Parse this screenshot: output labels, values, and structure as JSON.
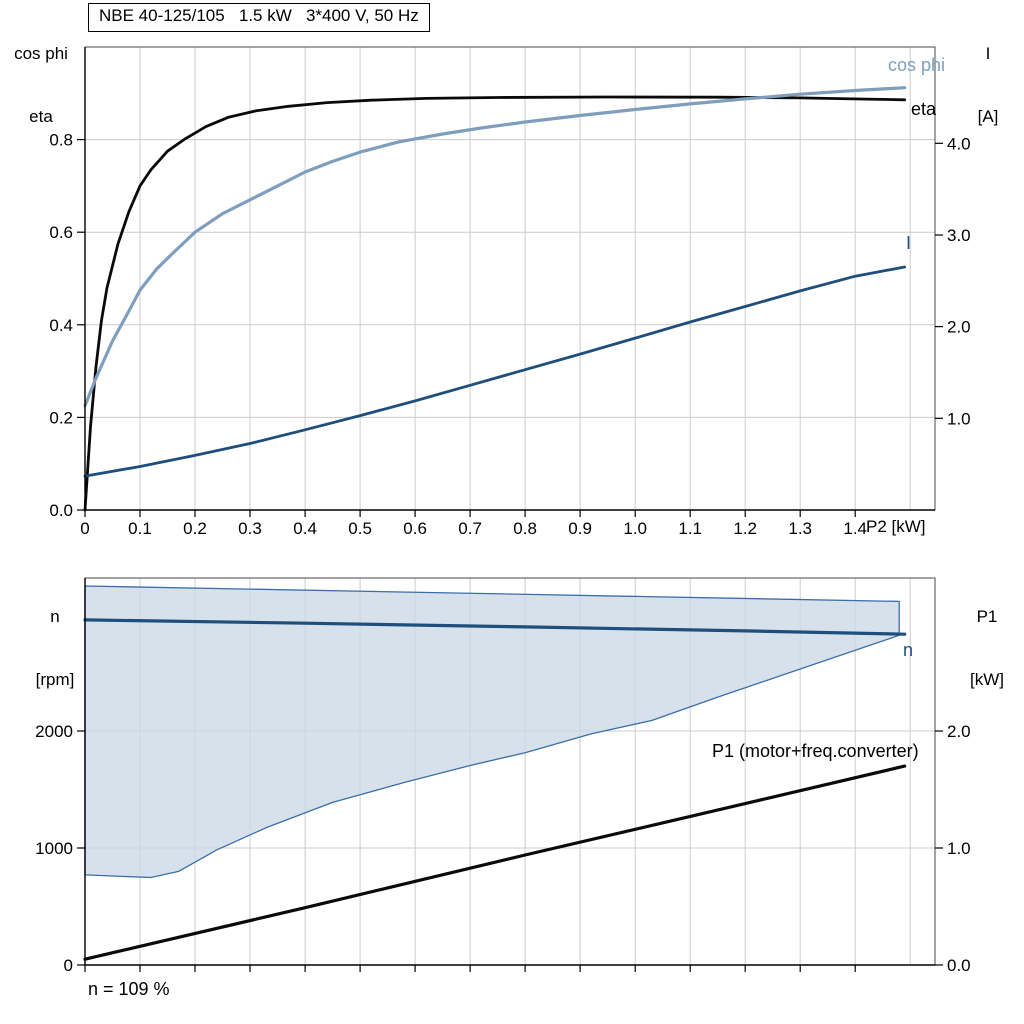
{
  "title_box": {
    "text": "NBE 40-125/105   1.5 kW   3*400 V, 50 Hz"
  },
  "colors": {
    "black_curve": "#0a0a0a",
    "steelblue": "#7f9dbd",
    "darkblue": "#1d4e7c",
    "grid": "#cccccc",
    "frame": "#4a4a4a",
    "region_fill": "#ccd9e7",
    "region_edge": "#3b6ea8",
    "background": "#ffffff"
  },
  "chart_data": [
    {
      "type": "line",
      "title": "NBE 40-125/105   1.5 kW   3*400 V, 50 Hz",
      "xlabel": "P2 [kW]",
      "ylabel_left": [
        "cos phi",
        "eta"
      ],
      "ylabel_right": [
        "I",
        "[A]"
      ],
      "xlim": [
        0,
        1.545
      ],
      "xticks": [
        0,
        0.1,
        0.2,
        0.3,
        0.4,
        0.5,
        0.6,
        0.7,
        0.8,
        0.9,
        1.0,
        1.1,
        1.2,
        1.3,
        1.4
      ],
      "xtick_labels": [
        "0",
        "0.1",
        "0.2",
        "0.3",
        "0.4",
        "0.5",
        "0.6",
        "0.7",
        "0.8",
        "0.9",
        "1.0",
        "1.1",
        "1.2",
        "1.3",
        "1.4"
      ],
      "xgrid": [
        0.1,
        0.2,
        0.3,
        0.4,
        0.5,
        0.6,
        0.7,
        0.8,
        0.9,
        1.0,
        1.1,
        1.2,
        1.3,
        1.4,
        1.5
      ],
      "ygrid": [
        0.2,
        0.4,
        0.6,
        0.8
      ],
      "left": {
        "lim": [
          0,
          1.0
        ],
        "ticks": [
          0,
          0.2,
          0.4,
          0.6,
          0.8
        ],
        "labels": [
          "0.0",
          "0.2",
          "0.4",
          "0.6",
          "0.8"
        ]
      },
      "right": {
        "lim": [
          0,
          5.05
        ],
        "ticks": [
          1,
          2,
          3,
          4
        ],
        "labels": [
          "1.0",
          "2.0",
          "3.0",
          "4.0"
        ]
      },
      "grid": true,
      "legend_position": "curve-end-labels",
      "series": [
        {
          "name": "eta",
          "axis": "left",
          "color": "black_curve",
          "width": 2.8,
          "points": [
            [
              0,
              0.0
            ],
            [
              0.01,
              0.18
            ],
            [
              0.02,
              0.31
            ],
            [
              0.03,
              0.41
            ],
            [
              0.04,
              0.48
            ],
            [
              0.06,
              0.575
            ],
            [
              0.08,
              0.645
            ],
            [
              0.1,
              0.7
            ],
            [
              0.12,
              0.735
            ],
            [
              0.15,
              0.775
            ],
            [
              0.18,
              0.8
            ],
            [
              0.22,
              0.828
            ],
            [
              0.26,
              0.848
            ],
            [
              0.31,
              0.862
            ],
            [
              0.37,
              0.872
            ],
            [
              0.44,
              0.88
            ],
            [
              0.52,
              0.885
            ],
            [
              0.62,
              0.889
            ],
            [
              0.75,
              0.891
            ],
            [
              0.95,
              0.892
            ],
            [
              1.15,
              0.8915
            ],
            [
              1.3,
              0.89
            ],
            [
              1.42,
              0.8875
            ],
            [
              1.49,
              0.886
            ]
          ]
        },
        {
          "name": "cos phi",
          "axis": "left",
          "color": "steelblue",
          "width": 3.2,
          "points": [
            [
              0,
              0.225
            ],
            [
              0.02,
              0.285
            ],
            [
              0.05,
              0.365
            ],
            [
              0.08,
              0.43
            ],
            [
              0.1,
              0.475
            ],
            [
              0.13,
              0.52
            ],
            [
              0.16,
              0.555
            ],
            [
              0.2,
              0.6
            ],
            [
              0.25,
              0.64
            ],
            [
              0.3,
              0.67
            ],
            [
              0.35,
              0.7
            ],
            [
              0.4,
              0.73
            ],
            [
              0.45,
              0.753
            ],
            [
              0.5,
              0.773
            ],
            [
              0.57,
              0.795
            ],
            [
              0.65,
              0.812
            ],
            [
              0.72,
              0.825
            ],
            [
              0.8,
              0.838
            ],
            [
              0.9,
              0.852
            ],
            [
              1.0,
              0.865
            ],
            [
              1.1,
              0.877
            ],
            [
              1.2,
              0.888
            ],
            [
              1.3,
              0.898
            ],
            [
              1.4,
              0.906
            ],
            [
              1.49,
              0.912
            ]
          ]
        },
        {
          "name": "I",
          "axis": "right",
          "color": "darkblue",
          "width": 2.8,
          "points": [
            [
              0,
              0.37
            ],
            [
              0.1,
              0.475
            ],
            [
              0.2,
              0.595
            ],
            [
              0.3,
              0.725
            ],
            [
              0.4,
              0.875
            ],
            [
              0.5,
              1.03
            ],
            [
              0.6,
              1.19
            ],
            [
              0.7,
              1.36
            ],
            [
              0.8,
              1.53
            ],
            [
              0.9,
              1.7
            ],
            [
              1.0,
              1.875
            ],
            [
              1.1,
              2.05
            ],
            [
              1.2,
              2.22
            ],
            [
              1.3,
              2.39
            ],
            [
              1.4,
              2.55
            ],
            [
              1.49,
              2.65
            ]
          ]
        }
      ]
    },
    {
      "type": "area",
      "title": "",
      "xlabel": "",
      "ylabel_left": [
        "n",
        "[rpm]"
      ],
      "ylabel_right": [
        "P1",
        "[kW]"
      ],
      "annotation": "n = 109 %",
      "xlim": [
        0,
        1.545
      ],
      "xticks": [
        0,
        0.1,
        0.2,
        0.3,
        0.4,
        0.5,
        0.6,
        0.7,
        0.8,
        0.9,
        1.0,
        1.1,
        1.2,
        1.3,
        1.4
      ],
      "xtick_labels": [],
      "xgrid": [
        0.1,
        0.2,
        0.3,
        0.4,
        0.5,
        0.6,
        0.7,
        0.8,
        0.9,
        1.0,
        1.1,
        1.2,
        1.3,
        1.4,
        1.5
      ],
      "ygrid": [
        1000,
        2000
      ],
      "left": {
        "lim": [
          0,
          3308
        ],
        "ticks": [
          0,
          1000,
          2000
        ],
        "labels": [
          "0",
          "1000",
          "2000"
        ]
      },
      "right": {
        "lim": [
          0,
          3.308
        ],
        "ticks": [
          0,
          1,
          2
        ],
        "labels": [
          "0.0",
          "1.0",
          "2.0"
        ]
      },
      "grid": true,
      "region": {
        "name": "speed-operating-region",
        "opacity": 0.78,
        "polygon": [
          [
            0,
            3240
          ],
          [
            1.48,
            3108
          ],
          [
            1.48,
            2818
          ],
          [
            1.3,
            2530
          ],
          [
            1.15,
            2290
          ],
          [
            1.03,
            2090
          ],
          [
            0.92,
            1975
          ],
          [
            0.8,
            1815
          ],
          [
            0.7,
            1705
          ],
          [
            0.58,
            1560
          ],
          [
            0.45,
            1390
          ],
          [
            0.33,
            1175
          ],
          [
            0.24,
            985
          ],
          [
            0.17,
            800
          ],
          [
            0.12,
            748
          ],
          [
            0,
            770
          ]
        ]
      },
      "series": [
        {
          "name": "n",
          "axis": "left",
          "color": "darkblue",
          "width": 3.2,
          "points": [
            [
              0,
              2950
            ],
            [
              0.4,
              2922
            ],
            [
              0.8,
              2890
            ],
            [
              1.2,
              2856
            ],
            [
              1.49,
              2828
            ]
          ]
        },
        {
          "name": "P1 (motor+freq.converter)",
          "axis": "right",
          "color": "black_curve",
          "width": 3.2,
          "points": [
            [
              0,
              0.05
            ],
            [
              0.4,
              0.49
            ],
            [
              0.8,
              0.94
            ],
            [
              1.2,
              1.38
            ],
            [
              1.49,
              1.7
            ]
          ]
        }
      ]
    }
  ]
}
